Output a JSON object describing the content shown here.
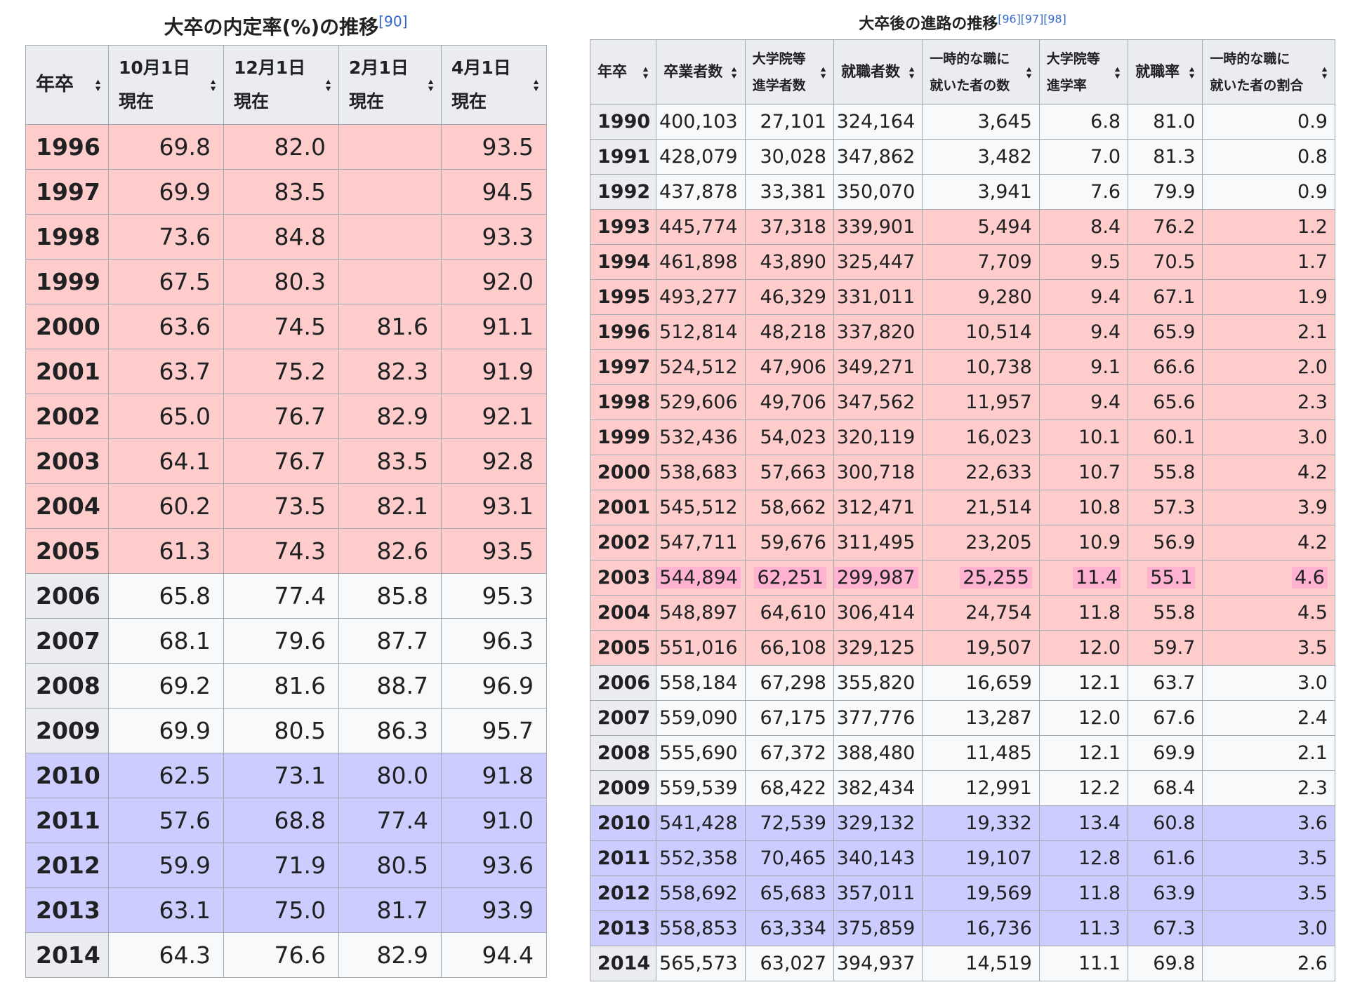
{
  "left": {
    "title": "大卒の内定率(%)の推移",
    "ref": "[90]",
    "headers": [
      {
        "lines": [
          "年卒"
        ]
      },
      {
        "lines": [
          "10月1日",
          "現在"
        ]
      },
      {
        "lines": [
          "12月1日",
          "現在"
        ]
      },
      {
        "lines": [
          "2月1日",
          "現在"
        ]
      },
      {
        "lines": [
          "4月1日",
          "現在"
        ]
      }
    ],
    "rows": [
      {
        "year": "1996",
        "tone": "red",
        "v": [
          "69.8",
          "82.0",
          "",
          "93.5"
        ]
      },
      {
        "year": "1997",
        "tone": "red",
        "v": [
          "69.9",
          "83.5",
          "",
          "94.5"
        ]
      },
      {
        "year": "1998",
        "tone": "red",
        "v": [
          "73.6",
          "84.8",
          "",
          "93.3"
        ]
      },
      {
        "year": "1999",
        "tone": "red",
        "v": [
          "67.5",
          "80.3",
          "",
          "92.0"
        ]
      },
      {
        "year": "2000",
        "tone": "red",
        "v": [
          "63.6",
          "74.5",
          "81.6",
          "91.1"
        ]
      },
      {
        "year": "2001",
        "tone": "red",
        "v": [
          "63.7",
          "75.2",
          "82.3",
          "91.9"
        ]
      },
      {
        "year": "2002",
        "tone": "red",
        "v": [
          "65.0",
          "76.7",
          "82.9",
          "92.1"
        ]
      },
      {
        "year": "2003",
        "tone": "red",
        "v": [
          "64.1",
          "76.7",
          "83.5",
          "92.8"
        ]
      },
      {
        "year": "2004",
        "tone": "red",
        "v": [
          "60.2",
          "73.5",
          "82.1",
          "93.1"
        ]
      },
      {
        "year": "2005",
        "tone": "red",
        "v": [
          "61.3",
          "74.3",
          "82.6",
          "93.5"
        ]
      },
      {
        "year": "2006",
        "tone": "white",
        "v": [
          "65.8",
          "77.4",
          "85.8",
          "95.3"
        ]
      },
      {
        "year": "2007",
        "tone": "white",
        "v": [
          "68.1",
          "79.6",
          "87.7",
          "96.3"
        ]
      },
      {
        "year": "2008",
        "tone": "white",
        "v": [
          "69.2",
          "81.6",
          "88.7",
          "96.9"
        ]
      },
      {
        "year": "2009",
        "tone": "white",
        "v": [
          "69.9",
          "80.5",
          "86.3",
          "95.7"
        ]
      },
      {
        "year": "2010",
        "tone": "blue",
        "v": [
          "62.5",
          "73.1",
          "80.0",
          "91.8"
        ]
      },
      {
        "year": "2011",
        "tone": "blue",
        "v": [
          "57.6",
          "68.8",
          "77.4",
          "91.0"
        ]
      },
      {
        "year": "2012",
        "tone": "blue",
        "v": [
          "59.9",
          "71.9",
          "80.5",
          "93.6"
        ]
      },
      {
        "year": "2013",
        "tone": "blue",
        "v": [
          "63.1",
          "75.0",
          "81.7",
          "93.9"
        ]
      },
      {
        "year": "2014",
        "tone": "white",
        "v": [
          "64.3",
          "76.6",
          "82.9",
          "94.4"
        ]
      }
    ]
  },
  "right": {
    "title": "大卒後の進路の推移",
    "refs": "[96][97][98]",
    "headers": [
      {
        "lines": [
          "年卒"
        ]
      },
      {
        "lines": [
          "卒業者数"
        ]
      },
      {
        "lines": [
          "大学院等",
          "進学者数"
        ]
      },
      {
        "lines": [
          "就職者数"
        ]
      },
      {
        "lines": [
          "一時的な職に",
          "就いた者の数"
        ]
      },
      {
        "lines": [
          "大学院等",
          "進学率"
        ]
      },
      {
        "lines": [
          "就職率"
        ]
      },
      {
        "lines": [
          "一時的な職に",
          "就いた者の割合"
        ]
      }
    ],
    "rows": [
      {
        "year": "1990",
        "tone": "white",
        "v": [
          "400,103",
          "27,101",
          "324,164",
          "3,645",
          "6.8",
          "81.0",
          "0.9"
        ]
      },
      {
        "year": "1991",
        "tone": "white",
        "v": [
          "428,079",
          "30,028",
          "347,862",
          "3,482",
          "7.0",
          "81.3",
          "0.8"
        ]
      },
      {
        "year": "1992",
        "tone": "white",
        "v": [
          "437,878",
          "33,381",
          "350,070",
          "3,941",
          "7.6",
          "79.9",
          "0.9"
        ]
      },
      {
        "year": "1993",
        "tone": "red",
        "v": [
          "445,774",
          "37,318",
          "339,901",
          "5,494",
          "8.4",
          "76.2",
          "1.2"
        ]
      },
      {
        "year": "1994",
        "tone": "red",
        "v": [
          "461,898",
          "43,890",
          "325,447",
          "7,709",
          "9.5",
          "70.5",
          "1.7"
        ]
      },
      {
        "year": "1995",
        "tone": "red",
        "v": [
          "493,277",
          "46,329",
          "331,011",
          "9,280",
          "9.4",
          "67.1",
          "1.9"
        ]
      },
      {
        "year": "1996",
        "tone": "red",
        "v": [
          "512,814",
          "48,218",
          "337,820",
          "10,514",
          "9.4",
          "65.9",
          "2.1"
        ]
      },
      {
        "year": "1997",
        "tone": "red",
        "v": [
          "524,512",
          "47,906",
          "349,271",
          "10,738",
          "9.1",
          "66.6",
          "2.0"
        ]
      },
      {
        "year": "1998",
        "tone": "red",
        "v": [
          "529,606",
          "49,706",
          "347,562",
          "11,957",
          "9.4",
          "65.6",
          "2.3"
        ]
      },
      {
        "year": "1999",
        "tone": "red",
        "v": [
          "532,436",
          "54,023",
          "320,119",
          "16,023",
          "10.1",
          "60.1",
          "3.0"
        ]
      },
      {
        "year": "2000",
        "tone": "red",
        "v": [
          "538,683",
          "57,663",
          "300,718",
          "22,633",
          "10.7",
          "55.8",
          "4.2"
        ]
      },
      {
        "year": "2001",
        "tone": "red",
        "v": [
          "545,512",
          "58,662",
          "312,471",
          "21,514",
          "10.8",
          "57.3",
          "3.9"
        ]
      },
      {
        "year": "2002",
        "tone": "red",
        "v": [
          "547,711",
          "59,676",
          "311,495",
          "23,205",
          "10.9",
          "56.9",
          "4.2"
        ]
      },
      {
        "year": "2003",
        "tone": "highlight",
        "v": [
          "544,894",
          "62,251",
          "299,987",
          "25,255",
          "11.4",
          "55.1",
          "4.6"
        ]
      },
      {
        "year": "2004",
        "tone": "red",
        "v": [
          "548,897",
          "64,610",
          "306,414",
          "24,754",
          "11.8",
          "55.8",
          "4.5"
        ]
      },
      {
        "year": "2005",
        "tone": "red",
        "v": [
          "551,016",
          "66,108",
          "329,125",
          "19,507",
          "12.0",
          "59.7",
          "3.5"
        ]
      },
      {
        "year": "2006",
        "tone": "white",
        "v": [
          "558,184",
          "67,298",
          "355,820",
          "16,659",
          "12.1",
          "63.7",
          "3.0"
        ]
      },
      {
        "year": "2007",
        "tone": "white",
        "v": [
          "559,090",
          "67,175",
          "377,776",
          "13,287",
          "12.0",
          "67.6",
          "2.4"
        ]
      },
      {
        "year": "2008",
        "tone": "white",
        "v": [
          "555,690",
          "67,372",
          "388,480",
          "11,485",
          "12.1",
          "69.9",
          "2.1"
        ]
      },
      {
        "year": "2009",
        "tone": "white",
        "v": [
          "559,539",
          "68,422",
          "382,434",
          "12,991",
          "12.2",
          "68.4",
          "2.3"
        ]
      },
      {
        "year": "2010",
        "tone": "blue",
        "v": [
          "541,428",
          "72,539",
          "329,132",
          "19,332",
          "13.4",
          "60.8",
          "3.6"
        ]
      },
      {
        "year": "2011",
        "tone": "blue",
        "v": [
          "552,358",
          "70,465",
          "340,143",
          "19,107",
          "12.8",
          "61.6",
          "3.5"
        ]
      },
      {
        "year": "2012",
        "tone": "blue",
        "v": [
          "558,692",
          "65,683",
          "357,011",
          "19,569",
          "11.8",
          "63.9",
          "3.5"
        ]
      },
      {
        "year": "2013",
        "tone": "blue",
        "v": [
          "558,853",
          "63,334",
          "375,859",
          "16,736",
          "11.3",
          "67.3",
          "3.0"
        ]
      },
      {
        "year": "2014",
        "tone": "white",
        "v": [
          "565,573",
          "63,027",
          "394,937",
          "14,519",
          "11.1",
          "69.8",
          "2.6"
        ]
      }
    ]
  },
  "icons": {
    "sort": "sort-icon"
  },
  "colors": {
    "pink_row": "#ffcccc",
    "blue_row": "#ccccff",
    "white_row": "#f8f9fa",
    "header": "#eaecf0",
    "highlight_cell": "#ffb3d1",
    "ref_link": "#3366cc"
  }
}
